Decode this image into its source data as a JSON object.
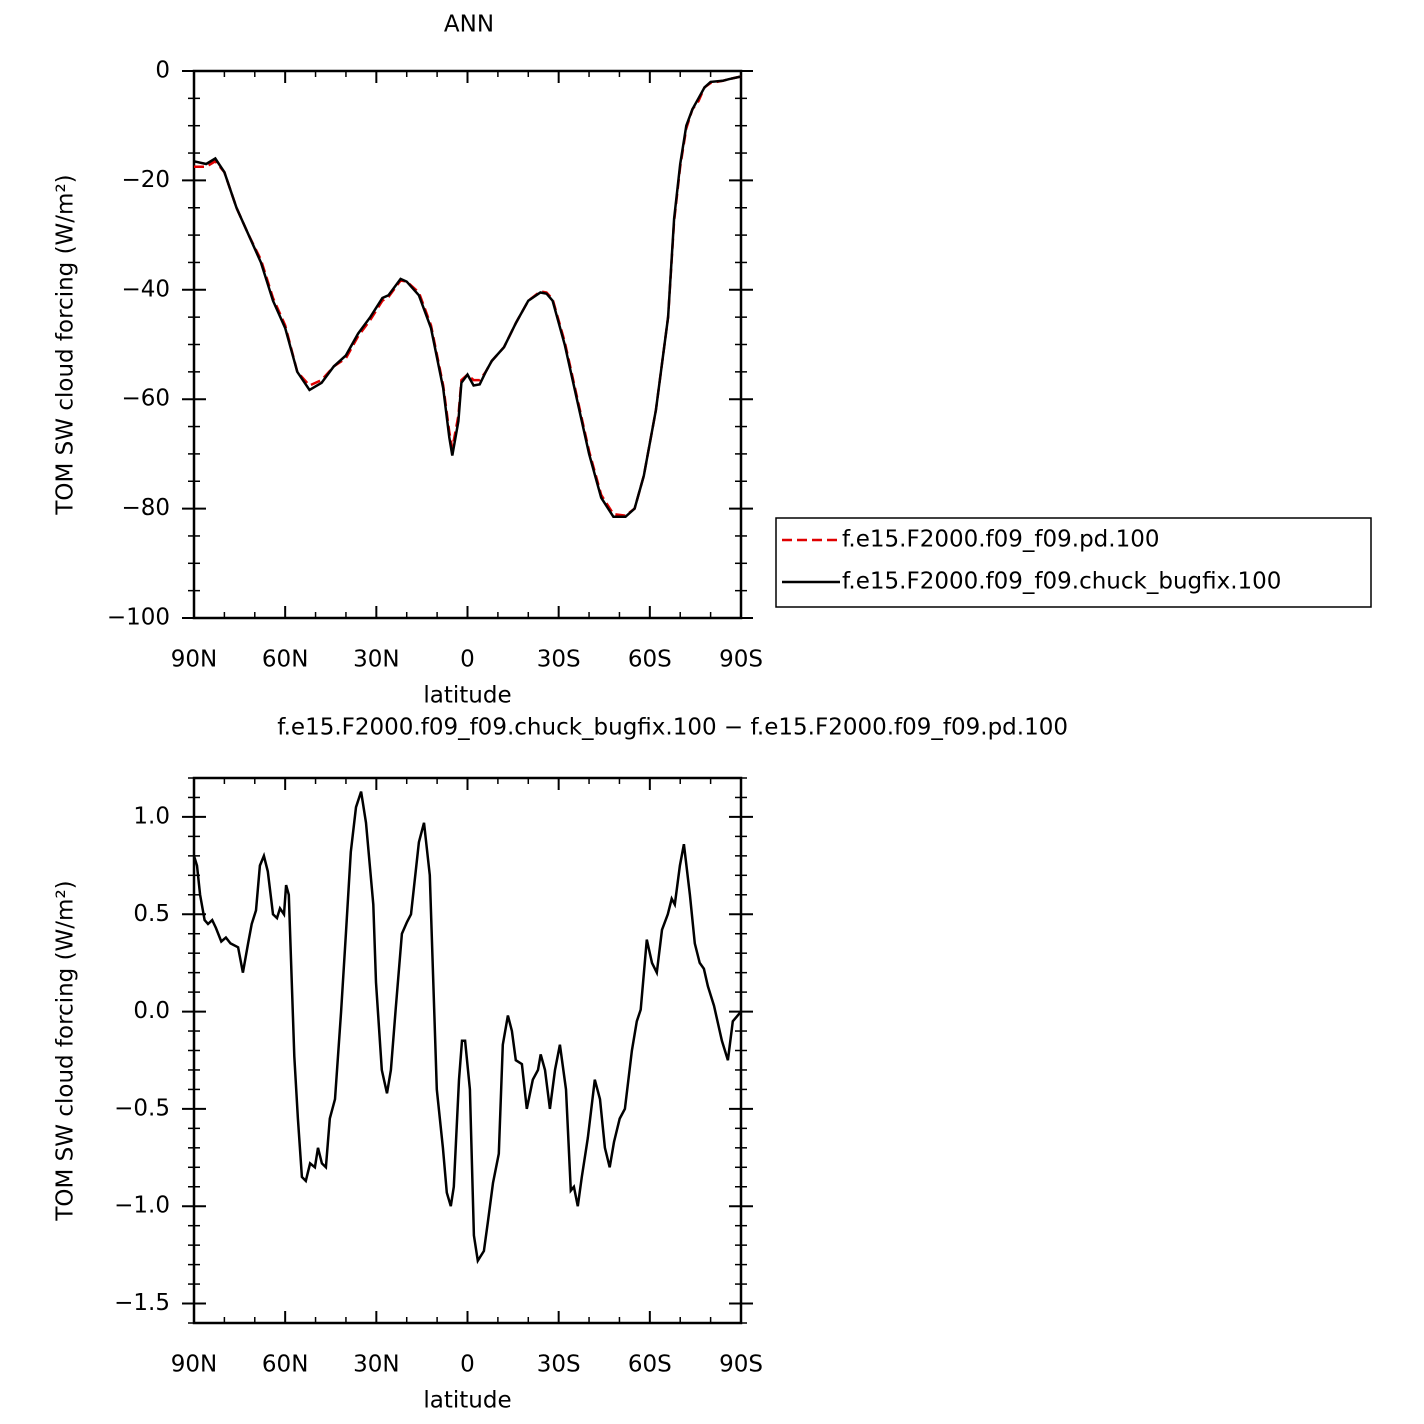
{
  "chart_data": [
    {
      "type": "line",
      "title": "ANN",
      "xlabel": "latitude",
      "ylabel": "TOM SW cloud forcing (W/m²)",
      "xlim": [
        90,
        -90
      ],
      "ylim": [
        0,
        -100
      ],
      "xticks": [
        {
          "value": 90,
          "label": "90N"
        },
        {
          "value": 60,
          "label": "60N"
        },
        {
          "value": 30,
          "label": "30N"
        },
        0,
        {
          "value": -30,
          "label": "30S"
        },
        {
          "value": -60,
          "label": "60S"
        },
        {
          "value": -90,
          "label": "90S"
        }
      ],
      "yticks": [
        0,
        {
          "value": -20,
          "label": "−20"
        },
        {
          "value": -40,
          "label": "−40"
        },
        {
          "value": -60,
          "label": "−60"
        },
        {
          "value": -80,
          "label": "−80"
        },
        {
          "value": -100,
          "label": "−100"
        }
      ],
      "legend": "outside-right",
      "x": [
        90,
        86,
        83,
        80,
        76,
        72,
        68,
        64,
        60,
        56,
        52,
        48,
        44,
        40,
        36,
        32,
        28,
        26,
        22,
        20,
        16,
        12,
        8,
        6,
        5,
        3,
        2,
        0,
        -2,
        -4,
        -6,
        -8,
        -12,
        -16,
        -20,
        -24,
        -26,
        -28,
        -32,
        -36,
        -40,
        -44,
        -48,
        -52,
        -55,
        -58,
        -62,
        -66,
        -68,
        -70,
        -72,
        -74,
        -76,
        -78,
        -80,
        -84,
        -86,
        -90
      ],
      "series": [
        {
          "name": "f.e15.F2000.f09_f09.pd.100",
          "color": "#e00000",
          "dash": true,
          "values": [
            -17.5,
            -17.5,
            -16.5,
            -18.5,
            -25,
            -30,
            -34.5,
            -41.5,
            -46.5,
            -55,
            -57.5,
            -56.5,
            -54,
            -52.5,
            -48.5,
            -45.5,
            -42,
            -41.3,
            -38.3,
            -38.5,
            -40.5,
            -46.5,
            -57.5,
            -66,
            -69,
            -63,
            -56.5,
            -55.5,
            -56.5,
            -56.5,
            -55,
            -53,
            -50.5,
            -46,
            -42,
            -40.3,
            -40.5,
            -41.7,
            -49.5,
            -59.5,
            -69.5,
            -77.5,
            -81,
            -81.3,
            -80,
            -74,
            -62,
            -45,
            -27.5,
            -17.5,
            -10.5,
            -7,
            -5.5,
            -3,
            -2.2,
            -1.8,
            -1.5,
            -1
          ]
        },
        {
          "name": "f.e15.F2000.f09_f09.chuck_bugfix.100",
          "color": "#000000",
          "dash": false,
          "values": [
            -16.5,
            -17,
            -16,
            -18.5,
            -25,
            -30,
            -35,
            -42,
            -47,
            -55,
            -58.3,
            -57,
            -54,
            -52,
            -48,
            -45,
            -41.5,
            -41,
            -38,
            -38.5,
            -41,
            -47,
            -58,
            -67,
            -70.3,
            -64,
            -57,
            -55.5,
            -57.5,
            -57.3,
            -55,
            -53,
            -50.5,
            -46,
            -42,
            -40.5,
            -40.7,
            -42,
            -50,
            -60,
            -70,
            -78,
            -81.5,
            -81.5,
            -80,
            -74,
            -62,
            -45,
            -27,
            -17,
            -10,
            -7,
            -5,
            -3,
            -2,
            -1.8,
            -1.5,
            -1
          ]
        }
      ]
    },
    {
      "type": "line",
      "title": "f.e15.F2000.f09_f09.chuck_bugfix.100 − f.e15.F2000.f09_f09.pd.100",
      "xlabel": "latitude",
      "ylabel": "TOM SW cloud forcing (W/m²)",
      "xlim": [
        90,
        -90
      ],
      "ylim": [
        1.2,
        -1.6
      ],
      "xticks": [
        {
          "value": 90,
          "label": "90N"
        },
        {
          "value": 60,
          "label": "60N"
        },
        {
          "value": 30,
          "label": "30N"
        },
        0,
        {
          "value": -30,
          "label": "30S"
        },
        {
          "value": -60,
          "label": "60S"
        },
        {
          "value": -90,
          "label": "90S"
        }
      ],
      "yticks": [
        {
          "value": 1,
          "label": "1.0"
        },
        0.5,
        {
          "value": 0,
          "label": "0.0"
        },
        {
          "value": -0.5,
          "label": "−0.5"
        },
        {
          "value": -1,
          "label": "−1.0"
        },
        {
          "value": -1.5,
          "label": "−1.5"
        }
      ],
      "x": [
        90,
        89,
        88,
        86.5,
        85.4,
        84,
        82.8,
        81,
        79.5,
        78,
        75.5,
        73.9,
        72.2,
        71,
        69.6,
        68.3,
        67,
        65.7,
        64,
        62.7,
        61.7,
        60.4,
        59.7,
        58.8,
        57,
        55.8,
        54.5,
        53.2,
        51.8,
        50.2,
        49.2,
        47.9,
        46.6,
        45.3,
        43.6,
        41.6,
        40,
        38.4,
        36.7,
        35,
        33.4,
        31,
        30.1,
        28.2,
        26.5,
        25.2,
        23.6,
        21.6,
        19.9,
        18.6,
        16,
        14.3,
        12.4,
        10.1,
        8.1,
        6.8,
        5.5,
        4.5,
        2.8,
        1.8,
        0.8,
        -0.8,
        -2.1,
        -3.4,
        -5.4,
        -6.7,
        -8.4,
        -10.3,
        -11.6,
        -13.3,
        -14.6,
        -15.9,
        -17.9,
        -19.5,
        -21.5,
        -23.2,
        -24.1,
        -25.5,
        -27.1,
        -28.8,
        -30.4,
        -32.4,
        -34,
        -35,
        -36.3,
        -37.6,
        -39.6,
        -41.9,
        -43.6,
        -45.2,
        -46.8,
        -48.2,
        -50.1,
        -51.8,
        -54.1,
        -55.7,
        -57,
        -59,
        -60.7,
        -62.3,
        -64,
        -65.9,
        -67.2,
        -68.2,
        -69.9,
        -71.2,
        -73.2,
        -74.8,
        -76.4,
        -77.8,
        -79.1,
        -81.1,
        -83.7,
        -85.7,
        -87.3,
        -90
      ],
      "series": [
        {
          "color": "#000000",
          "dash": false,
          "values": [
            0.8,
            0.75,
            0.6,
            0.47,
            0.45,
            0.47,
            0.43,
            0.36,
            0.38,
            0.35,
            0.33,
            0.2,
            0.35,
            0.45,
            0.52,
            0.75,
            0.8,
            0.72,
            0.5,
            0.48,
            0.53,
            0.5,
            0.65,
            0.6,
            -0.23,
            -0.55,
            -0.85,
            -0.87,
            -0.78,
            -0.8,
            -0.7,
            -0.78,
            -0.8,
            -0.55,
            -0.45,
            0,
            0.4,
            0.82,
            1.05,
            1.13,
            0.97,
            0.55,
            0.15,
            -0.3,
            -0.42,
            -0.3,
            0.02,
            0.4,
            0.46,
            0.5,
            0.87,
            0.97,
            0.7,
            -0.4,
            -0.7,
            -0.93,
            -1,
            -0.9,
            -0.35,
            -0.15,
            -0.15,
            -0.4,
            -1.15,
            -1.28,
            -1.23,
            -1.08,
            -0.88,
            -0.73,
            -0.17,
            -0.02,
            -0.1,
            -0.25,
            -0.27,
            -0.5,
            -0.35,
            -0.3,
            -0.22,
            -0.3,
            -0.5,
            -0.3,
            -0.17,
            -0.4,
            -0.92,
            -0.9,
            -1,
            -0.85,
            -0.65,
            -0.35,
            -0.45,
            -0.7,
            -0.8,
            -0.67,
            -0.55,
            -0.5,
            -0.2,
            -0.05,
            0.01,
            0.37,
            0.25,
            0.2,
            0.42,
            0.5,
            0.58,
            0.55,
            0.75,
            0.86,
            0.6,
            0.35,
            0.25,
            0.22,
            0.13,
            0.03,
            -0.15,
            -0.25,
            -0.05,
            0
          ]
        }
      ]
    }
  ]
}
